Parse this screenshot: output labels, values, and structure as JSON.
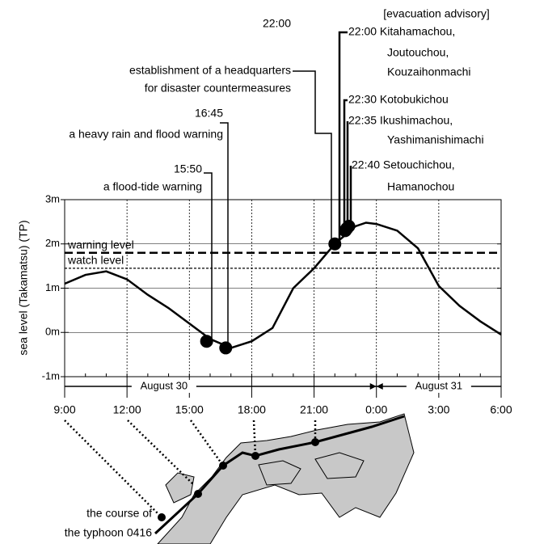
{
  "chart_data": {
    "type": "line",
    "y_label": "sea level (Takamatsu) (TP)",
    "xlim": [
      9,
      30
    ],
    "xticks": [
      {
        "value": 9,
        "label": "9:00"
      },
      {
        "value": 12,
        "label": "12:00"
      },
      {
        "value": 15,
        "label": "15:00"
      },
      {
        "value": 18,
        "label": "18:00"
      },
      {
        "value": 21,
        "label": "21:00"
      },
      {
        "value": 24,
        "label": "0:00"
      },
      {
        "value": 27,
        "label": "3:00"
      },
      {
        "value": 30,
        "label": "6:00"
      }
    ],
    "ylim": [
      -1,
      3
    ],
    "yticks": [
      {
        "value": -1,
        "label": "-1m"
      },
      {
        "value": 0,
        "label": "0m"
      },
      {
        "value": 1,
        "label": "1m"
      },
      {
        "value": 2,
        "label": "2m"
      },
      {
        "value": 3,
        "label": "3m"
      }
    ],
    "grid": true,
    "series": [
      {
        "color": "#000000",
        "x": [
          9,
          10,
          11,
          12,
          13,
          14,
          15,
          16,
          17,
          18,
          19,
          20,
          21,
          22,
          23,
          23.5,
          24,
          25,
          26,
          27,
          28,
          29,
          30
        ],
        "values": [
          1.1,
          1.3,
          1.38,
          1.2,
          0.85,
          0.55,
          0.2,
          -0.15,
          -0.35,
          -0.2,
          0.1,
          1.0,
          1.45,
          2.0,
          2.4,
          2.48,
          2.45,
          2.3,
          1.9,
          1.05,
          0.6,
          0.25,
          -0.05
        ]
      }
    ],
    "events": {
      "x": [
        15.83,
        16.75,
        22,
        22.5,
        22.58,
        22.67
      ],
      "values": [
        -0.2,
        -0.35,
        2.0,
        2.3,
        2.35,
        2.4
      ]
    },
    "reference_lines": [
      {
        "label": "warning level",
        "value": 1.8
      },
      {
        "label": "watch level",
        "value": 1.45
      }
    ],
    "date_spans": [
      {
        "label": "August 30",
        "from": 9,
        "to": 24
      },
      {
        "label": "August 31",
        "from": 24,
        "to": 30
      }
    ],
    "advisory_title": "[evacuation advisory]",
    "annotations": [
      {
        "lines": [
          "15:50",
          "a flood-tide warning"
        ]
      },
      {
        "lines": [
          "16:45",
          "a heavy rain and flood warning"
        ]
      },
      {
        "lines": [
          "22:00",
          "establishment of a headquarters",
          "for disaster countermeasures"
        ]
      },
      {
        "lines": [
          "22:00 Kitahamachou,",
          "Joutouchou,",
          "Kouzaihonmachi"
        ]
      },
      {
        "lines": [
          "22:30 Kotobukichou"
        ]
      },
      {
        "lines": [
          "22:35 Ikushimachou,",
          "Yashimanishimachi"
        ]
      },
      {
        "lines": [
          "22:40 Setouchichou,",
          "Hamanochou"
        ]
      }
    ],
    "map_label": [
      "the course of",
      "the typhoon 0416"
    ]
  }
}
